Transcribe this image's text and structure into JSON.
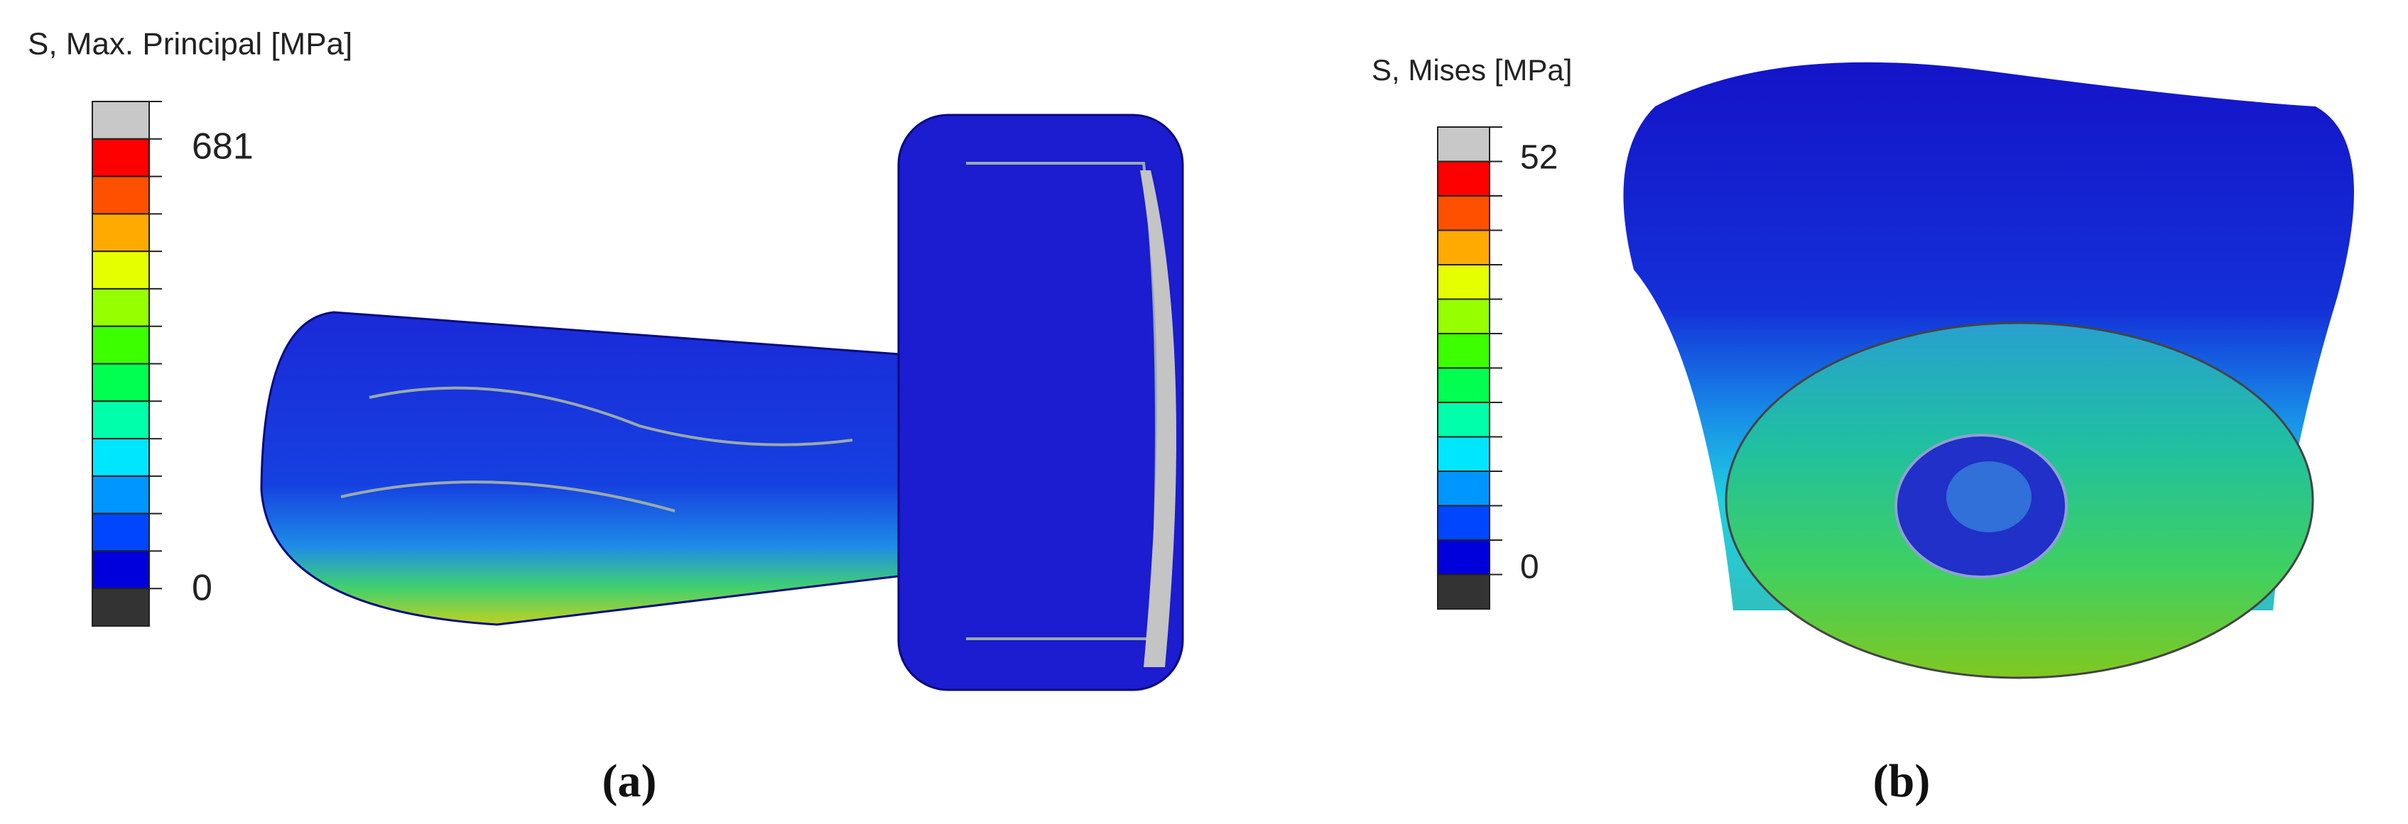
{
  "panels": [
    {
      "legend_title": "S, Max. Principal [MPa]",
      "max_label": "681",
      "min_label": "0",
      "caption": "(a)"
    },
    {
      "legend_title": "S, Mises [MPa]",
      "max_label": "52",
      "min_label": "0",
      "caption": "(b)"
    }
  ]
}
